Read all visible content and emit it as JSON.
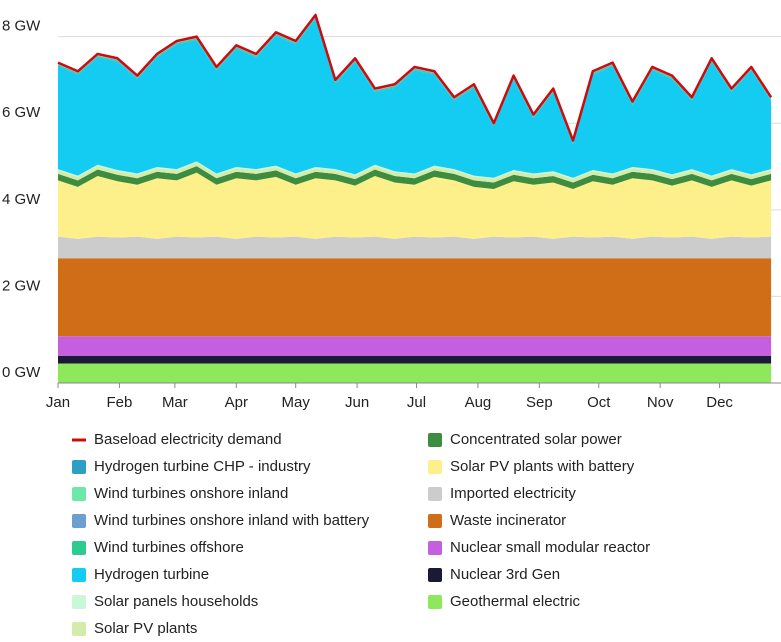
{
  "chart_data": {
    "type": "area",
    "stacked": true,
    "x": [
      0,
      10,
      20,
      30,
      40,
      50,
      60,
      70,
      80,
      90,
      100,
      110,
      120,
      130,
      140,
      150,
      160,
      170,
      180,
      190,
      200,
      210,
      220,
      230,
      240,
      250,
      260,
      270,
      280,
      290,
      300,
      310,
      320,
      330,
      340,
      350,
      360
    ],
    "xlim": [
      0,
      365
    ],
    "xticks": [
      {
        "value": 0,
        "label": "Jan"
      },
      {
        "value": 31,
        "label": "Feb"
      },
      {
        "value": 59,
        "label": "Mar"
      },
      {
        "value": 90,
        "label": "Apr"
      },
      {
        "value": 120,
        "label": "May"
      },
      {
        "value": 151,
        "label": "Jun"
      },
      {
        "value": 181,
        "label": "Jul"
      },
      {
        "value": 212,
        "label": "Aug"
      },
      {
        "value": 243,
        "label": "Sep"
      },
      {
        "value": 273,
        "label": "Oct"
      },
      {
        "value": 304,
        "label": "Nov"
      },
      {
        "value": 334,
        "label": "Dec"
      }
    ],
    "ylim": [
      0,
      8.8
    ],
    "yticks": [
      {
        "value": 0,
        "label": "0 GW"
      },
      {
        "value": 2,
        "label": "2 GW"
      },
      {
        "value": 4,
        "label": "4 GW"
      },
      {
        "value": 6,
        "label": "6 GW"
      },
      {
        "value": 8,
        "label": "8 GW"
      }
    ],
    "grid": true,
    "series": [
      {
        "name": "Baseload electricity demand",
        "type": "line",
        "color": "#cc0c0c",
        "values": [
          7.4,
          7.2,
          7.6,
          7.5,
          7.1,
          7.6,
          7.9,
          8.0,
          7.3,
          7.8,
          7.6,
          8.1,
          7.9,
          8.5,
          7.0,
          7.5,
          6.8,
          6.9,
          7.3,
          7.2,
          6.6,
          6.9,
          6.0,
          7.1,
          6.2,
          6.8,
          5.6,
          7.2,
          7.4,
          6.5,
          7.3,
          7.1,
          6.6,
          7.5,
          6.8,
          7.3,
          6.6
        ]
      },
      {
        "name": "Hydrogen turbine CHP - industry",
        "color": "#2e9fc4",
        "values": [
          0.02,
          0.02,
          0.02,
          0.02,
          0.02,
          0.02,
          0.02,
          0.02,
          0.02,
          0.02,
          0.02,
          0.02,
          0.02,
          0.02,
          0.02,
          0.02,
          0.02,
          0.02,
          0.02,
          0.02,
          0.02,
          0.02,
          0.02,
          0.02,
          0.02,
          0.02,
          0.02,
          0.02,
          0.02,
          0.02,
          0.02,
          0.02,
          0.02,
          0.02,
          0.02,
          0.02,
          0.02
        ]
      },
      {
        "name": "Wind turbines onshore inland",
        "color": "#6ee8a8",
        "values": [
          0.02,
          0.02,
          0.02,
          0.02,
          0.02,
          0.02,
          0.02,
          0.02,
          0.02,
          0.02,
          0.02,
          0.02,
          0.02,
          0.02,
          0.02,
          0.02,
          0.02,
          0.02,
          0.02,
          0.02,
          0.02,
          0.02,
          0.02,
          0.02,
          0.02,
          0.02,
          0.02,
          0.02,
          0.02,
          0.02,
          0.02,
          0.02,
          0.02,
          0.02,
          0.02,
          0.02,
          0.02
        ]
      },
      {
        "name": "Wind turbines onshore inland with battery",
        "color": "#6a9fd0",
        "values": [
          0.02,
          0.02,
          0.02,
          0.02,
          0.02,
          0.02,
          0.02,
          0.02,
          0.02,
          0.02,
          0.02,
          0.02,
          0.02,
          0.02,
          0.02,
          0.02,
          0.02,
          0.02,
          0.02,
          0.02,
          0.02,
          0.02,
          0.02,
          0.02,
          0.02,
          0.02,
          0.02,
          0.02,
          0.02,
          0.02,
          0.02,
          0.02,
          0.02,
          0.02,
          0.02,
          0.02,
          0.02
        ]
      },
      {
        "name": "Wind turbines offshore",
        "color": "#2ccc90",
        "values": [
          0.02,
          0.02,
          0.02,
          0.02,
          0.02,
          0.02,
          0.02,
          0.02,
          0.02,
          0.02,
          0.02,
          0.02,
          0.02,
          0.02,
          0.02,
          0.02,
          0.02,
          0.02,
          0.02,
          0.02,
          0.02,
          0.02,
          0.02,
          0.02,
          0.02,
          0.02,
          0.02,
          0.02,
          0.02,
          0.02,
          0.02,
          0.02,
          0.02,
          0.02,
          0.02,
          0.02,
          0.02
        ]
      },
      {
        "name": "Hydrogen turbine",
        "color": "#14ccf2",
        "values": [
          2.38,
          2.33,
          2.48,
          2.5,
          2.18,
          2.53,
          2.88,
          2.8,
          2.38,
          2.73,
          2.58,
          3.0,
          2.98,
          3.43,
          1.98,
          2.6,
          1.68,
          1.93,
          2.38,
          2.1,
          1.58,
          2.03,
          1.18,
          2.1,
          1.28,
          1.83,
          0.78,
          2.2,
          2.48,
          1.43,
          2.28,
          2.2,
          1.58,
          2.63,
          1.78,
          2.4,
          1.58
        ]
      },
      {
        "name": "Solar panels households",
        "color": "#c8f8d8",
        "values": [
          0.03,
          0.03,
          0.03,
          0.03,
          0.03,
          0.03,
          0.03,
          0.03,
          0.03,
          0.03,
          0.03,
          0.03,
          0.03,
          0.03,
          0.03,
          0.03,
          0.03,
          0.03,
          0.03,
          0.03,
          0.03,
          0.03,
          0.03,
          0.03,
          0.03,
          0.03,
          0.03,
          0.03,
          0.03,
          0.03,
          0.03,
          0.03,
          0.03,
          0.03,
          0.03,
          0.03,
          0.03
        ]
      },
      {
        "name": "Solar PV plants",
        "color": "#d4ecaa",
        "values": [
          0.08,
          0.08,
          0.08,
          0.08,
          0.08,
          0.08,
          0.08,
          0.08,
          0.08,
          0.08,
          0.08,
          0.08,
          0.08,
          0.08,
          0.08,
          0.08,
          0.08,
          0.08,
          0.08,
          0.08,
          0.08,
          0.08,
          0.08,
          0.08,
          0.08,
          0.08,
          0.08,
          0.08,
          0.08,
          0.08,
          0.08,
          0.08,
          0.08,
          0.08,
          0.08,
          0.08,
          0.08
        ]
      },
      {
        "name": "Concentrated solar power",
        "color": "#3d8c40",
        "values": [
          0.15,
          0.15,
          0.15,
          0.15,
          0.15,
          0.15,
          0.15,
          0.15,
          0.15,
          0.15,
          0.15,
          0.15,
          0.15,
          0.15,
          0.15,
          0.15,
          0.15,
          0.15,
          0.15,
          0.15,
          0.15,
          0.15,
          0.15,
          0.15,
          0.15,
          0.15,
          0.15,
          0.15,
          0.15,
          0.15,
          0.15,
          0.15,
          0.15,
          0.15,
          0.15,
          0.15,
          0.15
        ]
      },
      {
        "name": "Solar PV plants with battery",
        "color": "#fdf08a",
        "values": [
          1.3,
          1.2,
          1.4,
          1.3,
          1.2,
          1.4,
          1.3,
          1.5,
          1.2,
          1.4,
          1.3,
          1.4,
          1.2,
          1.4,
          1.3,
          1.2,
          1.4,
          1.3,
          1.2,
          1.4,
          1.3,
          1.2,
          1.1,
          1.3,
          1.2,
          1.3,
          1.1,
          1.3,
          1.2,
          1.4,
          1.3,
          1.2,
          1.3,
          1.2,
          1.3,
          1.2,
          1.3
        ]
      },
      {
        "name": "Imported electricity",
        "color": "#cccccc",
        "values": [
          0.5,
          0.45,
          0.5,
          0.48,
          0.5,
          0.45,
          0.5,
          0.48,
          0.5,
          0.45,
          0.5,
          0.48,
          0.5,
          0.45,
          0.5,
          0.48,
          0.5,
          0.45,
          0.5,
          0.48,
          0.5,
          0.45,
          0.5,
          0.48,
          0.5,
          0.45,
          0.5,
          0.48,
          0.5,
          0.45,
          0.5,
          0.48,
          0.5,
          0.45,
          0.5,
          0.48,
          0.5
        ]
      },
      {
        "name": "Waste incinerator",
        "color": "#cf6e17",
        "values": [
          1.8,
          1.8,
          1.8,
          1.8,
          1.8,
          1.8,
          1.8,
          1.8,
          1.8,
          1.8,
          1.8,
          1.8,
          1.8,
          1.8,
          1.8,
          1.8,
          1.8,
          1.8,
          1.8,
          1.8,
          1.8,
          1.8,
          1.8,
          1.8,
          1.8,
          1.8,
          1.8,
          1.8,
          1.8,
          1.8,
          1.8,
          1.8,
          1.8,
          1.8,
          1.8,
          1.8,
          1.8
        ]
      },
      {
        "name": "Nuclear small modular reactor",
        "color": "#c65ee0",
        "values": [
          0.45,
          0.45,
          0.45,
          0.45,
          0.45,
          0.45,
          0.45,
          0.45,
          0.45,
          0.45,
          0.45,
          0.45,
          0.45,
          0.45,
          0.45,
          0.45,
          0.45,
          0.45,
          0.45,
          0.45,
          0.45,
          0.45,
          0.45,
          0.45,
          0.45,
          0.45,
          0.45,
          0.45,
          0.45,
          0.45,
          0.45,
          0.45,
          0.45,
          0.45,
          0.45,
          0.45,
          0.45
        ]
      },
      {
        "name": "Nuclear 3rd Gen",
        "color": "#1b1a36",
        "values": [
          0.18,
          0.18,
          0.18,
          0.18,
          0.18,
          0.18,
          0.18,
          0.18,
          0.18,
          0.18,
          0.18,
          0.18,
          0.18,
          0.18,
          0.18,
          0.18,
          0.18,
          0.18,
          0.18,
          0.18,
          0.18,
          0.18,
          0.18,
          0.18,
          0.18,
          0.18,
          0.18,
          0.18,
          0.18,
          0.18,
          0.18,
          0.18,
          0.18,
          0.18,
          0.18,
          0.18,
          0.18
        ]
      },
      {
        "name": "Geothermal electric",
        "color": "#8de85b",
        "values": [
          0.45,
          0.45,
          0.45,
          0.45,
          0.45,
          0.45,
          0.45,
          0.45,
          0.45,
          0.45,
          0.45,
          0.45,
          0.45,
          0.45,
          0.45,
          0.45,
          0.45,
          0.45,
          0.45,
          0.45,
          0.45,
          0.45,
          0.45,
          0.45,
          0.45,
          0.45,
          0.45,
          0.45,
          0.45,
          0.45,
          0.45,
          0.45,
          0.45,
          0.45,
          0.45,
          0.45,
          0.45
        ]
      }
    ]
  }
}
